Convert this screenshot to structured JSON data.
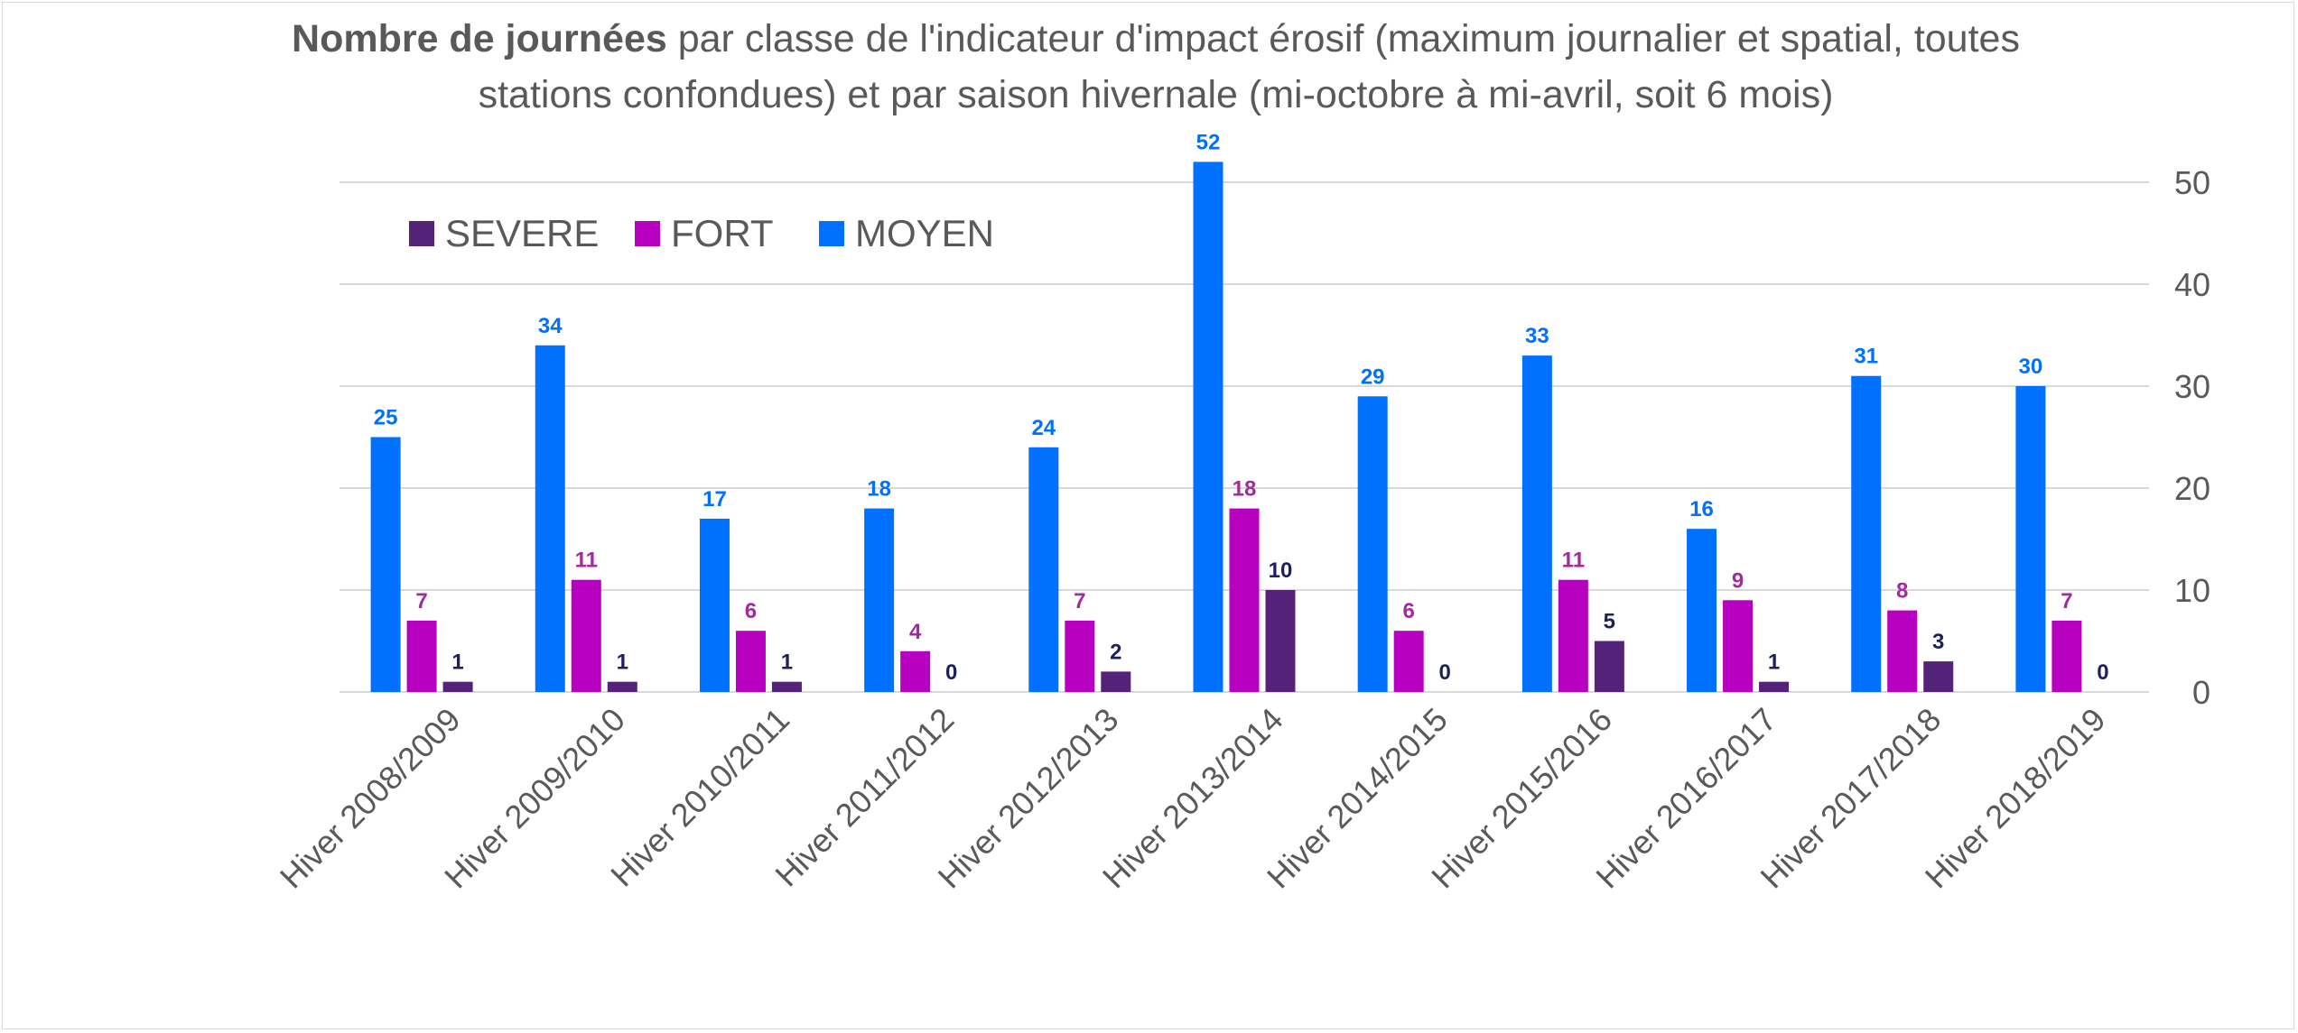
{
  "chart_data": {
    "type": "bar",
    "title_bold": "Nombre de journées",
    "title_rest": " par classe de l'indicateur d'impact érosif (maximum journalier et spatial, toutes stations confondues) et par saison hivernale (mi-octobre à mi-avril, soit 6 mois)",
    "categories": [
      "Hiver 2008/2009",
      "Hiver 2009/2010",
      "Hiver 2010/2011",
      "Hiver 2011/2012",
      "Hiver 2012/2013",
      "Hiver 2013/2014",
      "Hiver 2014/2015",
      "Hiver 2015/2016",
      "Hiver 2016/2017",
      "Hiver 2017/2018",
      "Hiver 2018/2019"
    ],
    "series": [
      {
        "name": "MOYEN",
        "color": "#0070FF",
        "label_color": "#0070FF",
        "values": [
          25,
          34,
          17,
          18,
          24,
          52,
          29,
          33,
          16,
          31,
          30
        ]
      },
      {
        "name": "FORT",
        "color": "#B800C0",
        "label_color": "#A12B9E",
        "values": [
          7,
          11,
          6,
          4,
          7,
          18,
          6,
          11,
          9,
          8,
          7
        ]
      },
      {
        "name": "SEVERE",
        "color": "#55227A",
        "label_color": "#1F1F5E",
        "values": [
          1,
          1,
          1,
          0,
          2,
          10,
          0,
          5,
          1,
          3,
          0
        ]
      }
    ],
    "legend_order": [
      "SEVERE",
      "FORT",
      "MOYEN"
    ],
    "legend_position": "top-left",
    "y_axis_position": "right",
    "ylim": [
      0,
      50
    ],
    "yticks": [
      0,
      10,
      20,
      30,
      40,
      50
    ],
    "grid": true,
    "gridline_color": "#D9D9D9",
    "axis_text_color": "#595959"
  }
}
